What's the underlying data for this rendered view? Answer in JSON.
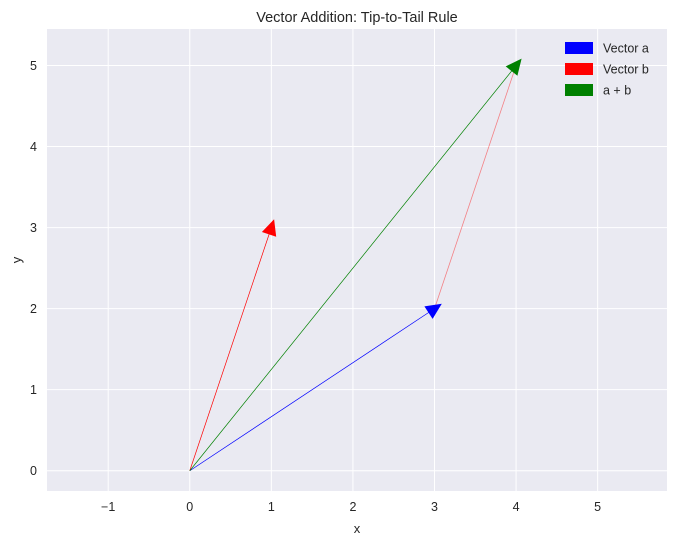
{
  "chart_data": {
    "type": "vector",
    "title": "Vector Addition: Tip-to-Tail Rule",
    "xlabel": "x",
    "ylabel": "y",
    "xlim": [
      -1.75,
      5.85
    ],
    "ylim": [
      -0.25,
      5.45
    ],
    "xticks": [
      -1,
      0,
      1,
      2,
      3,
      4,
      5
    ],
    "yticks": [
      0,
      1,
      2,
      3,
      4,
      5
    ],
    "xtick_labels": [
      "−1",
      "0",
      "1",
      "2",
      "3",
      "4",
      "5"
    ],
    "ytick_labels": [
      "0",
      "1",
      "2",
      "3",
      "4",
      "5"
    ],
    "grid": true,
    "legend_position": "top-right",
    "background": "#eaeaf2",
    "vectors": [
      {
        "name": "Vector a",
        "start": [
          0,
          0
        ],
        "end": [
          3,
          2
        ],
        "color": "#0000ff",
        "in_legend": true
      },
      {
        "name": "Vector b",
        "start": [
          0,
          0
        ],
        "end": [
          1,
          3
        ],
        "color": "#ff0000",
        "in_legend": true
      },
      {
        "name": "a + b",
        "start": [
          0,
          0
        ],
        "end": [
          4,
          5
        ],
        "color": "#008000",
        "in_legend": true
      },
      {
        "name": "",
        "start": [
          3,
          2
        ],
        "end": [
          4,
          5
        ],
        "color": "#ff0000",
        "in_legend": false,
        "faded": true
      }
    ]
  }
}
